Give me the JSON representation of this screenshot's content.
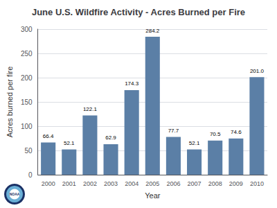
{
  "chart_data": {
    "type": "bar",
    "title": "June U.S. Wildfire Activity - Acres Burned per Fire",
    "xlabel": "Year",
    "ylabel": "Acres burned per fire",
    "categories": [
      "2000",
      "2001",
      "2002",
      "2003",
      "2004",
      "2005",
      "2006",
      "2007",
      "2008",
      "2009",
      "2010"
    ],
    "values": [
      66.4,
      52.1,
      122.1,
      62.9,
      174.3,
      284.2,
      77.7,
      52.1,
      70.5,
      74.6,
      201.0
    ],
    "value_labels": [
      "66.4",
      "52.1",
      "122.1",
      "62.9",
      "174.3",
      "284.2",
      "77.7",
      "52.1",
      "70.5",
      "74.6",
      "201.0"
    ],
    "data_labels": true,
    "color": "#5b7fa6",
    "ylim": [
      0,
      300
    ],
    "yticks": [
      0,
      50,
      100,
      150,
      200,
      250,
      300
    ],
    "grid": true,
    "annotations": [
      "NOAA"
    ]
  }
}
